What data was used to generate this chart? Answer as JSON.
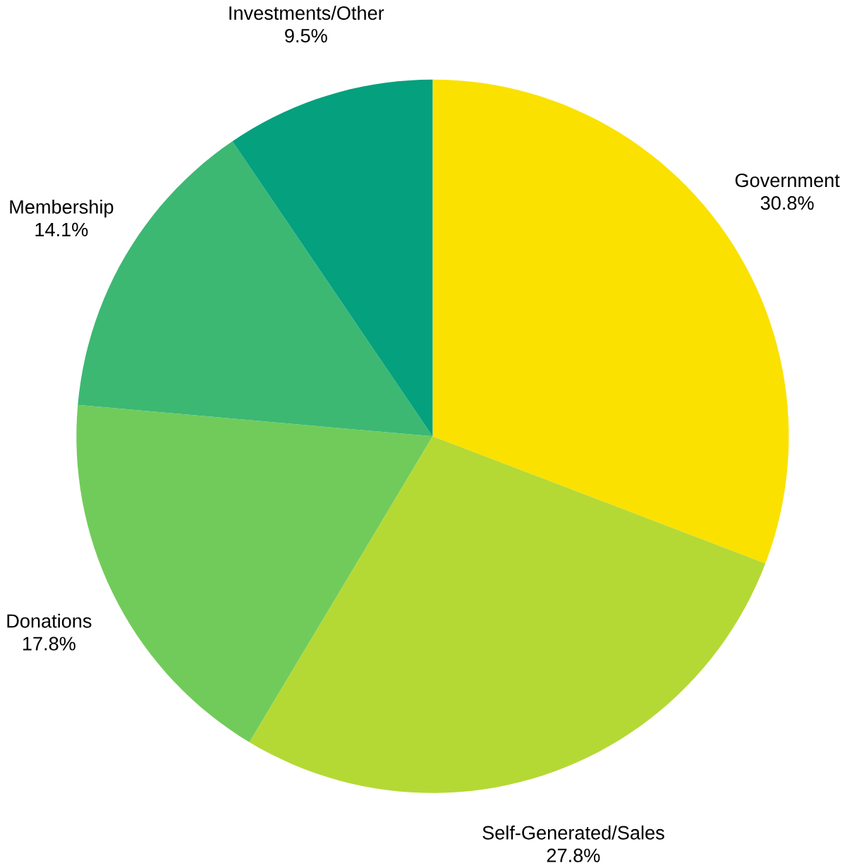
{
  "chart_data": {
    "type": "pie",
    "categories": [
      "Government",
      "Self-Generated/Sales",
      "Donations",
      "Membership",
      "Investments/Other"
    ],
    "values": [
      30.8,
      27.8,
      17.8,
      14.1,
      9.5
    ],
    "value_labels": [
      "30.8%",
      "27.8%",
      "17.8%",
      "14.1%",
      "9.5%"
    ],
    "colors": [
      "#fae100",
      "#b4d935",
      "#71cb5a",
      "#3cb873",
      "#05a07e"
    ]
  }
}
